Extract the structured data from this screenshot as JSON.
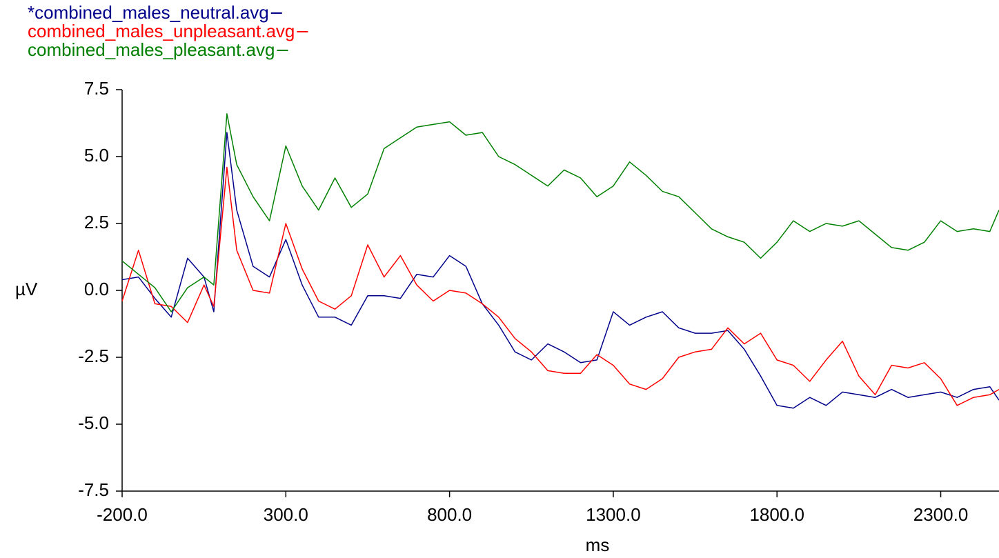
{
  "chart_data": {
    "type": "line",
    "x_label": "ms",
    "y_label": "µV",
    "x": [
      -200,
      -150,
      -100,
      -50,
      0,
      50,
      80,
      120,
      150,
      200,
      250,
      300,
      350,
      400,
      450,
      500,
      550,
      600,
      650,
      700,
      750,
      800,
      850,
      900,
      950,
      1000,
      1050,
      1100,
      1150,
      1200,
      1250,
      1300,
      1350,
      1400,
      1450,
      1500,
      1550,
      1600,
      1650,
      1700,
      1750,
      1800,
      1850,
      1900,
      1950,
      2000,
      2050,
      2100,
      2150,
      2200,
      2250,
      2300,
      2350,
      2400,
      2450,
      2478
    ],
    "series": [
      {
        "name": "*combined_males_neutral.avg",
        "color": "#00008b",
        "values": [
          0.4,
          0.5,
          -0.3,
          -1.0,
          1.2,
          0.5,
          -0.8,
          5.9,
          3.0,
          0.9,
          0.5,
          1.9,
          0.2,
          -1.0,
          -1.0,
          -1.3,
          -0.2,
          -0.2,
          -0.3,
          0.6,
          0.5,
          1.3,
          0.9,
          -0.5,
          -1.3,
          -2.3,
          -2.6,
          -2.0,
          -2.3,
          -2.7,
          -2.6,
          -0.8,
          -1.3,
          -1.0,
          -0.8,
          -1.4,
          -1.6,
          -1.6,
          -1.5,
          -2.2,
          -3.2,
          -4.3,
          -4.4,
          -4.0,
          -4.3,
          -3.8,
          -3.9,
          -4.0,
          -3.7,
          -4.0,
          -3.9,
          -3.8,
          -4.0,
          -3.7,
          -3.6,
          -4.1
        ]
      },
      {
        "name": "combined_males_unpleasant.avg",
        "color": "#ff0000",
        "values": [
          -0.4,
          1.5,
          -0.5,
          -0.6,
          -1.2,
          0.2,
          -0.6,
          4.6,
          1.5,
          0.0,
          -0.1,
          2.5,
          0.8,
          -0.4,
          -0.7,
          -0.2,
          1.7,
          0.5,
          1.3,
          0.2,
          -0.4,
          0.0,
          -0.1,
          -0.5,
          -1.0,
          -1.8,
          -2.3,
          -3.0,
          -3.1,
          -3.1,
          -2.4,
          -2.8,
          -3.5,
          -3.7,
          -3.3,
          -2.5,
          -2.3,
          -2.2,
          -1.4,
          -2.0,
          -1.6,
          -2.6,
          -2.8,
          -3.4,
          -2.6,
          -1.9,
          -3.2,
          -3.9,
          -2.8,
          -2.9,
          -2.7,
          -3.3,
          -4.3,
          -4.0,
          -3.9,
          -3.7
        ]
      },
      {
        "name": "combined_males_pleasant.avg",
        "color": "#008000",
        "values": [
          1.1,
          0.6,
          0.1,
          -0.8,
          0.1,
          0.5,
          0.2,
          6.6,
          4.7,
          3.5,
          2.6,
          5.4,
          3.9,
          3.0,
          4.2,
          3.1,
          3.6,
          5.3,
          5.7,
          6.1,
          6.2,
          6.3,
          5.8,
          5.9,
          5.0,
          4.7,
          4.3,
          3.9,
          4.5,
          4.2,
          3.5,
          3.9,
          4.8,
          4.3,
          3.7,
          3.5,
          2.9,
          2.3,
          2.0,
          1.8,
          1.2,
          1.8,
          2.6,
          2.2,
          2.5,
          2.4,
          2.6,
          2.1,
          1.6,
          1.5,
          1.8,
          2.6,
          2.2,
          2.3,
          2.2,
          3.0
        ]
      }
    ],
    "xlim": [
      -200,
      2478
    ],
    "xticks": [
      {
        "value": -200,
        "label": "-200.0"
      },
      {
        "value": 300,
        "label": "300.0"
      },
      {
        "value": 800,
        "label": "800.0"
      },
      {
        "value": 1300,
        "label": "1300.0"
      },
      {
        "value": 1800,
        "label": "1800.0"
      },
      {
        "value": 2300,
        "label": "2300.0"
      }
    ],
    "ylim": [
      -7.5,
      7.5
    ],
    "yticks": [
      -7.5,
      {
        "value": -5,
        "label": "-5.0"
      },
      -2.5,
      {
        "value": 0,
        "label": "0.0"
      },
      2.5,
      {
        "value": 5,
        "label": "5.0"
      },
      7.5
    ],
    "grid": false
  }
}
